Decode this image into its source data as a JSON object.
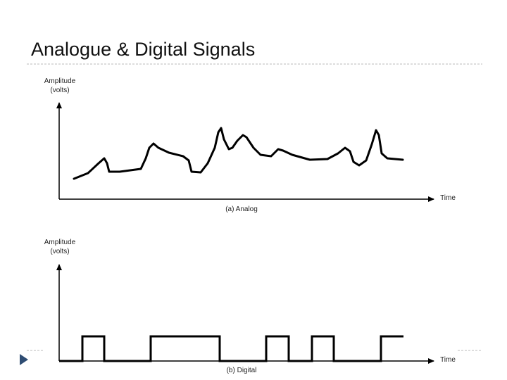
{
  "header": {
    "title": "Analogue & Digital Signals"
  },
  "analog": {
    "y_label": "Amplitude",
    "y_unit": "(volts)",
    "x_label": "Time",
    "caption": "(a) Analog"
  },
  "digital": {
    "y_label": "Amplitude",
    "y_unit": "(volts)",
    "x_label": "Time",
    "caption": "(b) Digital"
  }
}
